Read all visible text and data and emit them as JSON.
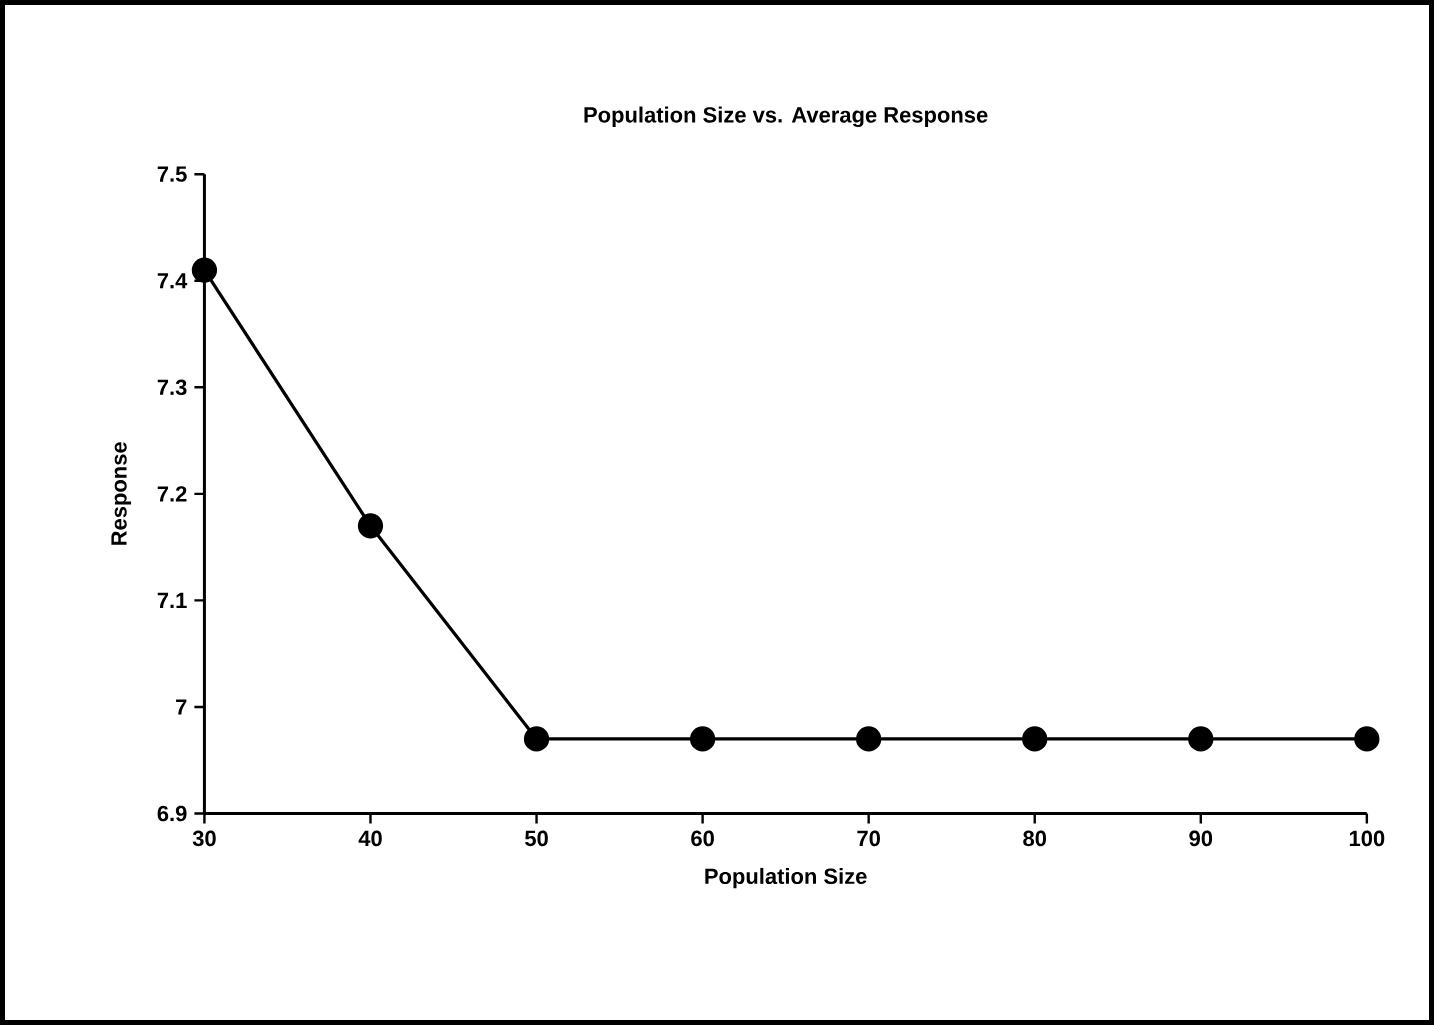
{
  "chart_data": {
    "type": "line",
    "title": "Population Size vs. Average Response",
    "xlabel": "Population Size",
    "ylabel": "Response",
    "x": [
      30,
      40,
      50,
      60,
      70,
      80,
      90,
      100
    ],
    "series": [
      {
        "color": "#000000",
        "values": [
          7.41,
          7.17,
          6.97,
          6.97,
          6.97,
          6.97,
          6.97,
          6.97
        ]
      }
    ],
    "xlim": [
      30,
      100
    ],
    "xticks": [
      30,
      40,
      50,
      60,
      70,
      80,
      90,
      100
    ],
    "ylim": [
      6.9,
      7.5
    ],
    "yticks": [
      6.9,
      7,
      7.1,
      7.2,
      7.3,
      7.4,
      7.5
    ],
    "marker": "circle",
    "line_style": "solid"
  }
}
